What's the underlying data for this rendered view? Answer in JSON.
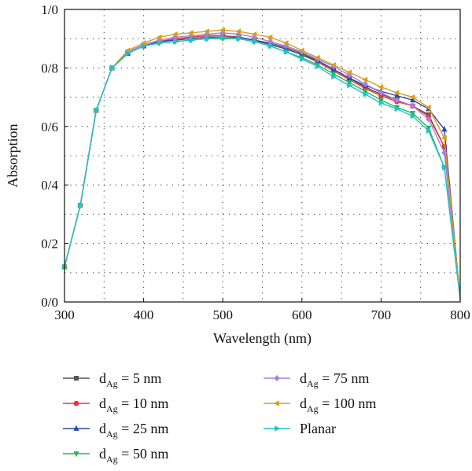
{
  "chart_data": {
    "type": "line",
    "xlabel": "Wavelength (nm)",
    "ylabel": "Absorption",
    "xlim": [
      300,
      800
    ],
    "ylim": [
      0.0,
      1.0
    ],
    "x_ticks": [
      "300",
      "400",
      "500",
      "600",
      "700",
      "800"
    ],
    "y_ticks": [
      "0/0",
      "0/2",
      "0/4",
      "0/6",
      "0/8",
      "1/0"
    ],
    "grid": "dotted",
    "legend_position": "bottom",
    "x": [
      300,
      320,
      340,
      360,
      380,
      400,
      420,
      440,
      460,
      480,
      500,
      520,
      540,
      560,
      580,
      600,
      620,
      640,
      660,
      680,
      700,
      720,
      740,
      760,
      780,
      800
    ],
    "series": [
      {
        "name": "dAg = 5 nm",
        "name_main": "d",
        "name_sub": "Ag",
        "name_rest": " = 5 nm",
        "color": "#555555",
        "marker": "square",
        "values": [
          0.12,
          0.33,
          0.655,
          0.8,
          0.85,
          0.875,
          0.89,
          0.9,
          0.905,
          0.91,
          0.91,
          0.905,
          0.895,
          0.885,
          0.87,
          0.85,
          0.825,
          0.795,
          0.765,
          0.735,
          0.71,
          0.69,
          0.67,
          0.64,
          0.53,
          0.01
        ]
      },
      {
        "name": "dAg = 10 nm",
        "name_main": "d",
        "name_sub": "Ag",
        "name_rest": " = 10 nm",
        "color": "#e8333a",
        "marker": "circle",
        "values": [
          0.12,
          0.33,
          0.655,
          0.8,
          0.85,
          0.875,
          0.89,
          0.9,
          0.905,
          0.91,
          0.91,
          0.905,
          0.895,
          0.88,
          0.865,
          0.845,
          0.82,
          0.79,
          0.76,
          0.73,
          0.705,
          0.685,
          0.67,
          0.635,
          0.53,
          0.01
        ]
      },
      {
        "name": "dAg = 25 nm",
        "name_main": "d",
        "name_sub": "Ag",
        "name_rest": " = 25 nm",
        "color": "#2b4aa8",
        "marker": "triangle-up",
        "values": [
          0.12,
          0.33,
          0.655,
          0.8,
          0.85,
          0.875,
          0.89,
          0.895,
          0.9,
          0.905,
          0.905,
          0.905,
          0.895,
          0.88,
          0.865,
          0.845,
          0.825,
          0.795,
          0.765,
          0.74,
          0.72,
          0.705,
          0.69,
          0.66,
          0.59,
          0.01
        ]
      },
      {
        "name": "dAg = 50 nm",
        "name_main": "d",
        "name_sub": "Ag",
        "name_rest": " = 50 nm",
        "color": "#27b35a",
        "marker": "triangle-down",
        "values": [
          0.12,
          0.33,
          0.655,
          0.8,
          0.85,
          0.875,
          0.885,
          0.89,
          0.895,
          0.9,
          0.9,
          0.9,
          0.89,
          0.875,
          0.855,
          0.835,
          0.81,
          0.78,
          0.75,
          0.72,
          0.69,
          0.665,
          0.645,
          0.595,
          0.46,
          0.01
        ]
      },
      {
        "name": "dAg = 75 nm",
        "name_main": "d",
        "name_sub": "Ag",
        "name_rest": " = 75 nm",
        "color": "#b07cd6",
        "marker": "diamond",
        "values": [
          0.12,
          0.33,
          0.655,
          0.8,
          0.855,
          0.88,
          0.895,
          0.905,
          0.91,
          0.915,
          0.92,
          0.915,
          0.905,
          0.89,
          0.875,
          0.855,
          0.83,
          0.805,
          0.775,
          0.745,
          0.715,
          0.69,
          0.67,
          0.625,
          0.51,
          0.01
        ]
      },
      {
        "name": "dAg = 100 nm",
        "name_main": "d",
        "name_sub": "Ag",
        "name_rest": " = 100 nm",
        "color": "#d4a020",
        "marker": "triangle-left",
        "values": [
          0.12,
          0.33,
          0.655,
          0.8,
          0.86,
          0.885,
          0.905,
          0.915,
          0.92,
          0.925,
          0.93,
          0.925,
          0.915,
          0.905,
          0.885,
          0.86,
          0.835,
          0.81,
          0.785,
          0.76,
          0.735,
          0.715,
          0.7,
          0.665,
          0.56,
          0.01
        ]
      },
      {
        "name": "Planar",
        "name_main": "Planar",
        "name_sub": "",
        "name_rest": "",
        "color": "#1fc0cf",
        "marker": "triangle-right",
        "values": [
          0.12,
          0.33,
          0.655,
          0.8,
          0.85,
          0.875,
          0.885,
          0.89,
          0.895,
          0.9,
          0.905,
          0.9,
          0.89,
          0.875,
          0.855,
          0.83,
          0.805,
          0.77,
          0.74,
          0.71,
          0.68,
          0.66,
          0.635,
          0.585,
          0.46,
          0.01
        ]
      }
    ]
  }
}
